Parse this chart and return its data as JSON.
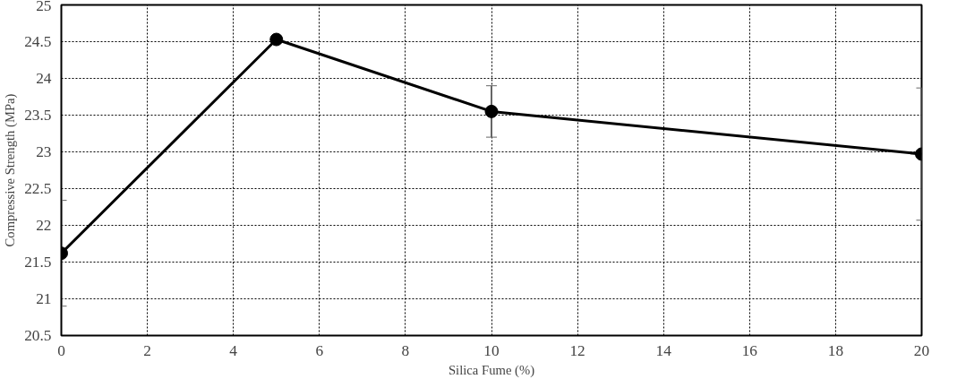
{
  "chart_data": {
    "type": "line",
    "xlabel": "Silica Fume (%)",
    "ylabel": "Compressive Strength (MPa)",
    "x": [
      0,
      5,
      10,
      20
    ],
    "series": [
      {
        "color": "#000000",
        "values": [
          21.62,
          24.53,
          23.55,
          22.97
        ],
        "errors": [
          0.72,
          null,
          0.35,
          0.9
        ]
      }
    ],
    "xlim": [
      0,
      20
    ],
    "xticks": [
      0,
      2,
      4,
      6,
      8,
      10,
      12,
      14,
      16,
      18,
      20
    ],
    "ylim": [
      20.5,
      25
    ],
    "yticks": [
      20.5,
      21,
      21.5,
      22,
      22.5,
      23,
      23.5,
      24,
      24.5,
      25
    ],
    "grid": true,
    "marker": "circle",
    "line_style": "solid"
  }
}
